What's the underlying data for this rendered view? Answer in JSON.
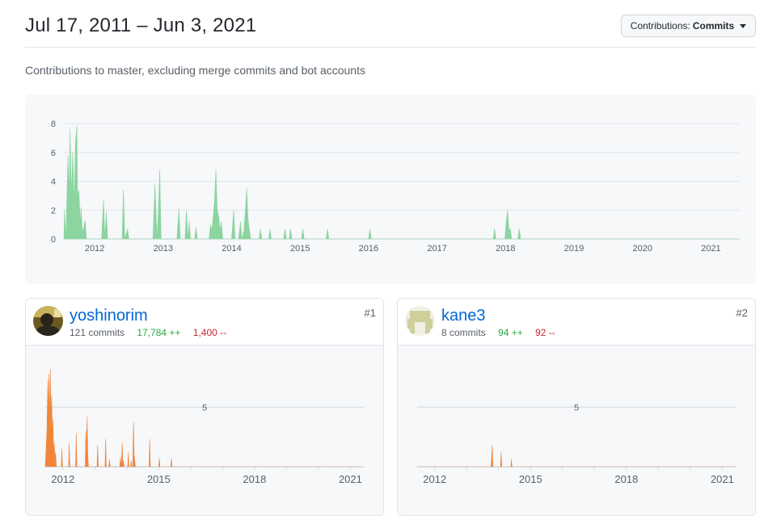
{
  "header": {
    "date_range": "Jul 17, 2011 – Jun 3, 2021",
    "contrib_button": {
      "label": "Contributions:",
      "value": "Commits"
    }
  },
  "subtitle": "Contributions to master, excluding merge commits and bot accounts",
  "colors": {
    "commits_area": "#8cd4a0",
    "contributor_area": "#f1853a",
    "link": "#0366d6",
    "additions": "#28a745",
    "deletions": "#cb2431"
  },
  "chart_data": [
    {
      "type": "area",
      "x_unit": "year (decimal)",
      "xlim": [
        2011.55,
        2021.42
      ],
      "ylim": [
        0,
        8
      ],
      "y_ticks": [
        "0",
        "2",
        "4",
        "6",
        "8"
      ],
      "x_ticks": [
        "2012",
        "2013",
        "2014",
        "2015",
        "2016",
        "2017",
        "2018",
        "2019",
        "2020",
        "2021"
      ],
      "grid": true,
      "points": [
        [
          2011.55,
          0
        ],
        [
          2011.56,
          2
        ],
        [
          2011.58,
          0
        ],
        [
          2011.61,
          5.8
        ],
        [
          2011.63,
          3
        ],
        [
          2011.64,
          7.6
        ],
        [
          2011.66,
          3
        ],
        [
          2011.68,
          6
        ],
        [
          2011.7,
          2.4
        ],
        [
          2011.72,
          6.8
        ],
        [
          2011.74,
          7.8
        ],
        [
          2011.75,
          3
        ],
        [
          2011.77,
          3.4
        ],
        [
          2011.79,
          1
        ],
        [
          2011.8,
          2.2
        ],
        [
          2011.82,
          0.5
        ],
        [
          2011.84,
          0.8
        ],
        [
          2011.86,
          1.3
        ],
        [
          2011.88,
          0
        ],
        [
          2012.1,
          0
        ],
        [
          2012.13,
          2.7
        ],
        [
          2012.15,
          0
        ],
        [
          2012.17,
          1.9
        ],
        [
          2012.19,
          0
        ],
        [
          2012.4,
          0
        ],
        [
          2012.42,
          3.4
        ],
        [
          2012.44,
          0
        ],
        [
          2012.48,
          0.7
        ],
        [
          2012.5,
          0
        ],
        [
          2012.85,
          0
        ],
        [
          2012.88,
          3.8
        ],
        [
          2012.91,
          0
        ],
        [
          2012.93,
          2
        ],
        [
          2012.95,
          4.8
        ],
        [
          2012.97,
          0
        ],
        [
          2013.2,
          0
        ],
        [
          2013.23,
          2.1
        ],
        [
          2013.25,
          0
        ],
        [
          2013.32,
          0
        ],
        [
          2013.34,
          2
        ],
        [
          2013.36,
          0
        ],
        [
          2013.38,
          1.2
        ],
        [
          2013.4,
          0
        ],
        [
          2013.46,
          0
        ],
        [
          2013.48,
          0.8
        ],
        [
          2013.5,
          0
        ],
        [
          2013.67,
          0
        ],
        [
          2013.69,
          1
        ],
        [
          2013.71,
          0.6
        ],
        [
          2013.73,
          1.5
        ],
        [
          2013.75,
          2.5
        ],
        [
          2013.77,
          4.8
        ],
        [
          2013.79,
          2
        ],
        [
          2013.81,
          1.6
        ],
        [
          2013.83,
          0.6
        ],
        [
          2013.85,
          1.2
        ],
        [
          2013.87,
          0
        ],
        [
          2014.0,
          0
        ],
        [
          2014.03,
          2
        ],
        [
          2014.05,
          0
        ],
        [
          2014.1,
          0
        ],
        [
          2014.13,
          1.2
        ],
        [
          2014.15,
          0
        ],
        [
          2014.18,
          0.6
        ],
        [
          2014.2,
          2
        ],
        [
          2014.22,
          3.5
        ],
        [
          2014.24,
          1.4
        ],
        [
          2014.26,
          0.6
        ],
        [
          2014.28,
          0
        ],
        [
          2014.4,
          0
        ],
        [
          2014.42,
          0.7
        ],
        [
          2014.44,
          0
        ],
        [
          2014.54,
          0
        ],
        [
          2014.56,
          0.7
        ],
        [
          2014.58,
          0
        ],
        [
          2014.76,
          0
        ],
        [
          2014.78,
          0.7
        ],
        [
          2014.8,
          0
        ],
        [
          2014.84,
          0
        ],
        [
          2014.86,
          0.7
        ],
        [
          2014.88,
          0
        ],
        [
          2015.02,
          0
        ],
        [
          2015.04,
          0.7
        ],
        [
          2015.06,
          0
        ],
        [
          2015.38,
          0
        ],
        [
          2015.4,
          0.7
        ],
        [
          2015.42,
          0
        ],
        [
          2016.0,
          0
        ],
        [
          2016.02,
          0.7
        ],
        [
          2016.04,
          0
        ],
        [
          2017.82,
          0
        ],
        [
          2017.84,
          0.7
        ],
        [
          2017.86,
          0
        ],
        [
          2017.99,
          0
        ],
        [
          2018.01,
          1.2
        ],
        [
          2018.03,
          2
        ],
        [
          2018.05,
          0.6
        ],
        [
          2018.07,
          0.7
        ],
        [
          2018.09,
          0
        ],
        [
          2018.18,
          0
        ],
        [
          2018.2,
          0.7
        ],
        [
          2018.22,
          0
        ],
        [
          2021.42,
          0
        ]
      ]
    },
    {
      "type": "area",
      "series_name": "yoshinorim",
      "x_unit": "year (decimal)",
      "xlim": [
        2011.45,
        2021.42
      ],
      "ylim": [
        0,
        8
      ],
      "reference_line": {
        "value": 5,
        "label": "5"
      },
      "x_ticks": [
        "2012",
        "2015",
        "2018",
        "2021"
      ],
      "points": [
        [
          2011.45,
          0
        ],
        [
          2011.5,
          3
        ],
        [
          2011.53,
          7.3
        ],
        [
          2011.55,
          4
        ],
        [
          2011.57,
          7.8
        ],
        [
          2011.59,
          3
        ],
        [
          2011.61,
          8.2
        ],
        [
          2011.63,
          4
        ],
        [
          2011.65,
          6
        ],
        [
          2011.67,
          2.5
        ],
        [
          2011.69,
          4
        ],
        [
          2011.71,
          1
        ],
        [
          2011.73,
          2
        ],
        [
          2011.75,
          0.5
        ],
        [
          2011.77,
          1.2
        ],
        [
          2011.8,
          0
        ],
        [
          2011.95,
          0
        ],
        [
          2011.97,
          1.5
        ],
        [
          2011.99,
          0
        ],
        [
          2012.18,
          0
        ],
        [
          2012.2,
          2
        ],
        [
          2012.22,
          0
        ],
        [
          2012.4,
          0
        ],
        [
          2012.42,
          2.8
        ],
        [
          2012.44,
          0
        ],
        [
          2012.7,
          0
        ],
        [
          2012.72,
          3
        ],
        [
          2012.74,
          1.5
        ],
        [
          2012.76,
          4.2
        ],
        [
          2012.78,
          1
        ],
        [
          2012.8,
          0
        ],
        [
          2013.07,
          0
        ],
        [
          2013.09,
          1.8
        ],
        [
          2013.11,
          0
        ],
        [
          2013.32,
          0
        ],
        [
          2013.34,
          2.3
        ],
        [
          2013.36,
          0
        ],
        [
          2013.44,
          0
        ],
        [
          2013.46,
          0.6
        ],
        [
          2013.48,
          0
        ],
        [
          2013.78,
          0
        ],
        [
          2013.8,
          0.8
        ],
        [
          2013.82,
          0
        ],
        [
          2013.84,
          0.6
        ],
        [
          2013.86,
          2
        ],
        [
          2013.88,
          0
        ],
        [
          2013.9,
          0.5
        ],
        [
          2013.92,
          0
        ],
        [
          2014.03,
          0
        ],
        [
          2014.05,
          1.2
        ],
        [
          2014.07,
          0
        ],
        [
          2014.12,
          0
        ],
        [
          2014.14,
          0.5
        ],
        [
          2014.16,
          0
        ],
        [
          2014.19,
          0
        ],
        [
          2014.21,
          3.7
        ],
        [
          2014.23,
          1
        ],
        [
          2014.25,
          0.5
        ],
        [
          2014.27,
          0
        ],
        [
          2014.7,
          0
        ],
        [
          2014.72,
          2.3
        ],
        [
          2014.74,
          0
        ],
        [
          2015.0,
          0
        ],
        [
          2015.02,
          0.7
        ],
        [
          2015.04,
          0
        ],
        [
          2015.38,
          0
        ],
        [
          2015.4,
          0.7
        ],
        [
          2015.42,
          0
        ],
        [
          2021.42,
          0
        ]
      ]
    },
    {
      "type": "area",
      "series_name": "kane3",
      "x_unit": "year (decimal)",
      "xlim": [
        2011.45,
        2021.42
      ],
      "ylim": [
        0,
        8
      ],
      "reference_line": {
        "value": 5,
        "label": "5"
      },
      "x_ticks": [
        "2012",
        "2015",
        "2018",
        "2021"
      ],
      "points": [
        [
          2011.45,
          0
        ],
        [
          2013.76,
          0
        ],
        [
          2013.78,
          0.8
        ],
        [
          2013.8,
          1.8
        ],
        [
          2013.82,
          0
        ],
        [
          2014.06,
          0
        ],
        [
          2014.08,
          1.2
        ],
        [
          2014.1,
          0
        ],
        [
          2014.38,
          0
        ],
        [
          2014.4,
          0.6
        ],
        [
          2014.42,
          0
        ],
        [
          2021.42,
          0
        ]
      ]
    }
  ],
  "contributors": [
    {
      "username": "yoshinorim",
      "commits": "121 commits",
      "additions": "17,784 ++",
      "deletions": "1,400 --",
      "rank": "#1"
    },
    {
      "username": "kane3",
      "commits": "8 commits",
      "additions": "94 ++",
      "deletions": "92 --",
      "rank": "#2"
    }
  ]
}
